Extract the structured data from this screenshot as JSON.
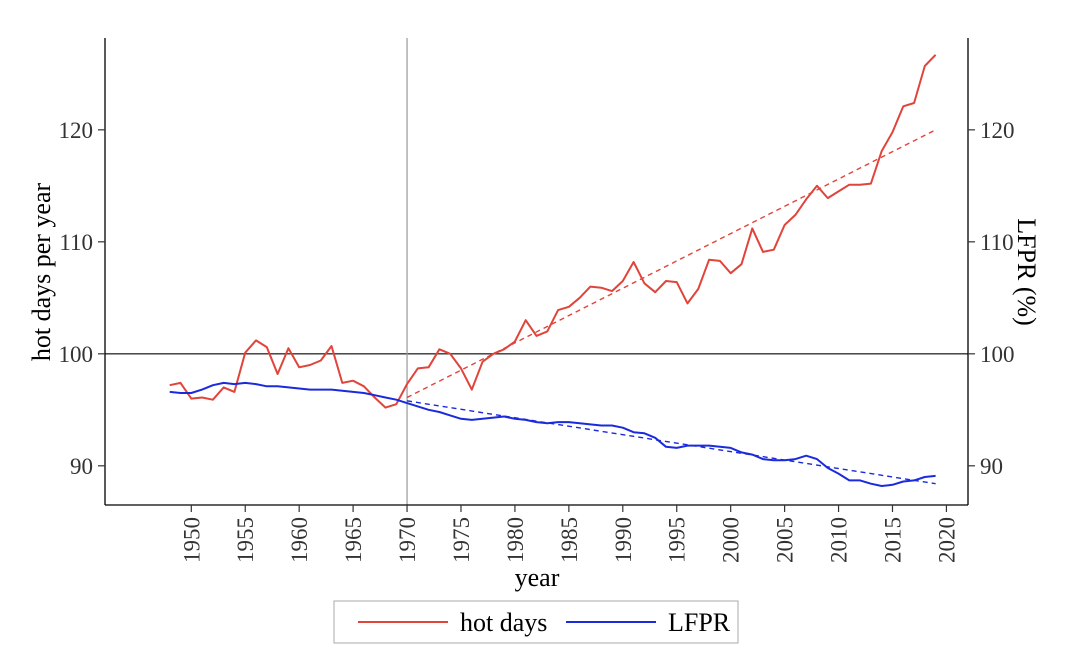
{
  "chart_data": {
    "type": "line",
    "title": "",
    "xlabel": "year",
    "ylabel": "hot days per year",
    "y2label": "LFPR (%)",
    "xlim": [
      1942,
      2022
    ],
    "ylim": [
      86.5,
      128.2
    ],
    "x_ticks": [
      1950,
      1955,
      1960,
      1965,
      1970,
      1975,
      1980,
      1985,
      1990,
      1995,
      2000,
      2005,
      2010,
      2015,
      2020
    ],
    "y_ticks": [
      90,
      100,
      110,
      120
    ],
    "y2_ticks": [
      90,
      100,
      110,
      120
    ],
    "x_tick_labels": [
      "1950",
      "1955",
      "1960",
      "1965",
      "1970",
      "1975",
      "1980",
      "1985",
      "1990",
      "1995",
      "2000",
      "2005",
      "2010",
      "2015",
      "2020"
    ],
    "y_tick_labels": [
      "90",
      "100",
      "110",
      "120"
    ],
    "y2_tick_labels": [
      "90",
      "100",
      "110",
      "120"
    ],
    "reference_lines": {
      "vertical_x": 1970,
      "horizontal_y": 100
    },
    "legend_position": "bottom",
    "grid": false,
    "series": [
      {
        "name": "hot days",
        "color": "#e0443a",
        "x": [
          1948,
          1949,
          1950,
          1951,
          1952,
          1953,
          1954,
          1955,
          1956,
          1957,
          1958,
          1959,
          1960,
          1961,
          1962,
          1963,
          1964,
          1965,
          1966,
          1967,
          1968,
          1969,
          1970,
          1971,
          1972,
          1973,
          1974,
          1975,
          1976,
          1977,
          1978,
          1979,
          1980,
          1981,
          1982,
          1983,
          1984,
          1985,
          1986,
          1987,
          1988,
          1989,
          1990,
          1991,
          1992,
          1993,
          1994,
          1995,
          1996,
          1997,
          1998,
          1999,
          2000,
          2001,
          2002,
          2003,
          2004,
          2005,
          2006,
          2007,
          2008,
          2009,
          2010,
          2011,
          2012,
          2013,
          2014,
          2015,
          2016,
          2017,
          2018,
          2019
        ],
        "values": [
          97.2,
          97.4,
          96.0,
          96.1,
          95.9,
          97.0,
          96.6,
          100.1,
          101.2,
          100.6,
          98.2,
          100.5,
          98.8,
          99.0,
          99.4,
          100.7,
          97.4,
          97.6,
          97.1,
          96.1,
          95.2,
          95.5,
          97.3,
          98.7,
          98.8,
          100.4,
          100.0,
          98.7,
          96.8,
          99.3,
          100.0,
          100.4,
          101.1,
          103.0,
          101.6,
          102.0,
          103.9,
          104.2,
          105.0,
          106.0,
          105.9,
          105.6,
          106.5,
          108.2,
          106.3,
          105.5,
          106.5,
          106.4,
          104.5,
          105.8,
          108.4,
          108.3,
          107.2,
          108.0,
          111.2,
          109.1,
          109.3,
          111.5,
          112.4,
          113.8,
          115.0,
          113.9,
          114.5,
          115.1,
          115.1,
          115.2,
          118.1,
          119.8,
          122.1,
          122.4,
          125.7,
          126.7
        ]
      },
      {
        "name": "LFPR",
        "color": "#1b2bdc",
        "x": [
          1948,
          1949,
          1950,
          1951,
          1952,
          1953,
          1954,
          1955,
          1956,
          1957,
          1958,
          1959,
          1960,
          1961,
          1962,
          1963,
          1964,
          1965,
          1966,
          1967,
          1968,
          1969,
          1970,
          1971,
          1972,
          1973,
          1974,
          1975,
          1976,
          1977,
          1978,
          1979,
          1980,
          1981,
          1982,
          1983,
          1984,
          1985,
          1986,
          1987,
          1988,
          1989,
          1990,
          1991,
          1992,
          1993,
          1994,
          1995,
          1996,
          1997,
          1998,
          1999,
          2000,
          2001,
          2002,
          2003,
          2004,
          2005,
          2006,
          2007,
          2008,
          2009,
          2010,
          2011,
          2012,
          2013,
          2014,
          2015,
          2016,
          2017,
          2018,
          2019
        ],
        "values": [
          96.6,
          96.5,
          96.5,
          96.8,
          97.2,
          97.4,
          97.3,
          97.4,
          97.3,
          97.1,
          97.1,
          97.0,
          96.9,
          96.8,
          96.8,
          96.8,
          96.7,
          96.6,
          96.5,
          96.3,
          96.1,
          95.9,
          95.6,
          95.3,
          95.0,
          94.8,
          94.5,
          94.2,
          94.1,
          94.2,
          94.3,
          94.4,
          94.2,
          94.1,
          93.9,
          93.8,
          93.9,
          93.9,
          93.8,
          93.7,
          93.6,
          93.6,
          93.4,
          93.0,
          92.9,
          92.5,
          91.7,
          91.6,
          91.8,
          91.8,
          91.8,
          91.7,
          91.6,
          91.2,
          91.0,
          90.6,
          90.5,
          90.5,
          90.6,
          90.9,
          90.6,
          89.8,
          89.3,
          88.7,
          88.7,
          88.4,
          88.2,
          88.3,
          88.6,
          88.7,
          89.0,
          89.1
        ]
      }
    ],
    "trend_lines": [
      {
        "series": "hot days",
        "style": "dashed",
        "color": "#e0443a",
        "x": [
          1970,
          2019
        ],
        "values": [
          96.1,
          120.0
        ]
      },
      {
        "series": "LFPR",
        "style": "dashed",
        "color": "#1b2bdc",
        "x": [
          1970,
          2019
        ],
        "values": [
          95.8,
          88.4
        ]
      }
    ]
  }
}
